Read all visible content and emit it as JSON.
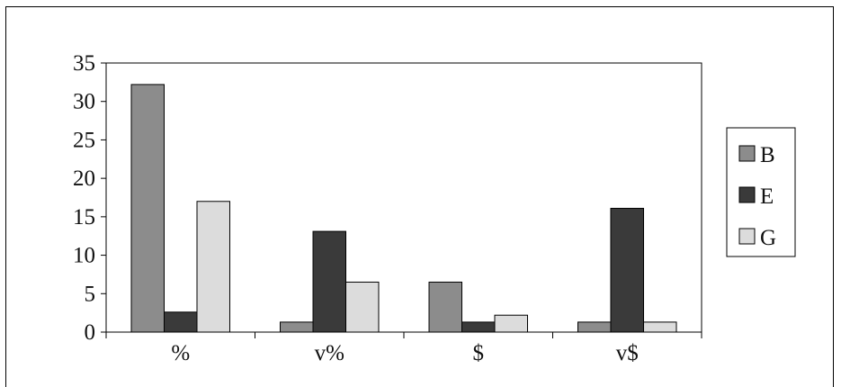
{
  "chart_data": {
    "type": "bar",
    "title": "",
    "xlabel": "",
    "ylabel": "",
    "categories": [
      "%",
      "v%",
      "$",
      "v$"
    ],
    "series": [
      {
        "name": "B",
        "values": [
          32.2,
          1.3,
          6.5,
          1.3
        ],
        "color": "#8c8c8c"
      },
      {
        "name": "E",
        "values": [
          2.6,
          13.1,
          1.3,
          16.1
        ],
        "color": "#3a3a3a"
      },
      {
        "name": "G",
        "values": [
          17.0,
          6.5,
          2.2,
          1.3
        ],
        "color": "#dcdcdc"
      }
    ],
    "ylim": [
      0,
      35
    ],
    "yticks": [
      0,
      5,
      10,
      15,
      20,
      25,
      30,
      35
    ],
    "legend_position": "right",
    "grid": false
  }
}
